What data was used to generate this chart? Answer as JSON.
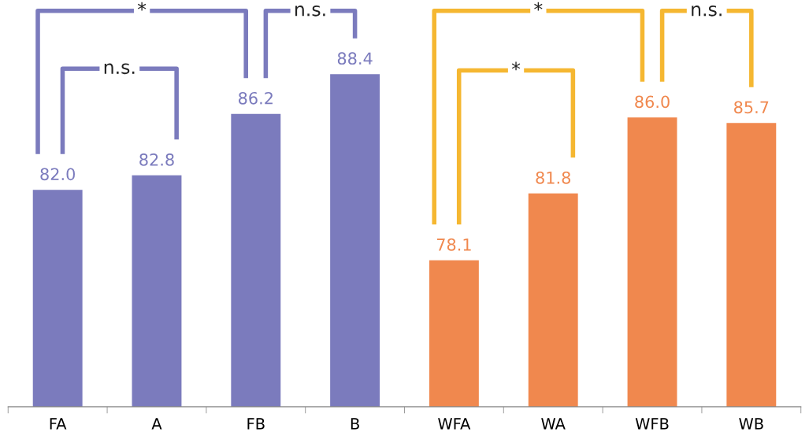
{
  "chart_data": {
    "type": "bar",
    "categories": [
      "FA",
      "A",
      "FB",
      "B",
      "WFA",
      "WA",
      "WFB",
      "WB"
    ],
    "values": [
      82.0,
      82.8,
      86.2,
      88.4,
      78.1,
      81.8,
      86.0,
      85.7
    ],
    "colors": [
      "#7b7bbd",
      "#7b7bbd",
      "#7b7bbd",
      "#7b7bbd",
      "#f0884e",
      "#f0884e",
      "#f0884e",
      "#f0884e"
    ],
    "ylim": [
      70,
      92.5
    ],
    "tick_labels": "x",
    "value_labels": [
      "82.0",
      "82.8",
      "86.2",
      "88.4",
      "78.1",
      "81.8",
      "86.0",
      "85.7"
    ],
    "grid": false,
    "legend": false,
    "annotations": [
      "*",
      "n.s.",
      "n.s.",
      "*",
      "*",
      "n.s."
    ]
  }
}
